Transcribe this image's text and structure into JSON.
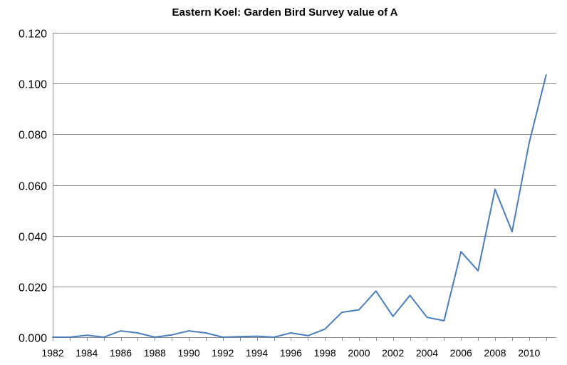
{
  "chart_data": {
    "type": "line",
    "title": "Eastern Koel: Garden Bird Survey value of A",
    "xlabel": "",
    "ylabel": "",
    "xlim": [
      1982,
      2011.6
    ],
    "ylim": [
      0,
      0.12
    ],
    "grid": true,
    "legend": "none",
    "y_ticks": [
      0,
      0.02,
      0.04,
      0.06,
      0.08,
      0.1,
      0.12
    ],
    "y_tick_labels": [
      "0.000",
      "0.020",
      "0.040",
      "0.060",
      "0.080",
      "0.100",
      "0.120"
    ],
    "x_ticks": [
      1982,
      1984,
      1986,
      1988,
      1990,
      1992,
      1994,
      1996,
      1998,
      2000,
      2002,
      2004,
      2006,
      2008,
      2010
    ],
    "x_tick_labels": [
      "1982",
      "1984",
      "1986",
      "1988",
      "1990",
      "1992",
      "1994",
      "1996",
      "1998",
      "2000",
      "2002",
      "2004",
      "2006",
      "2008",
      "2010"
    ],
    "series": [
      {
        "name": "Eastern Koel",
        "color": "#4A7EBB",
        "x": [
          1982,
          1983,
          1984,
          1985,
          1986,
          1987,
          1988,
          1989,
          1990,
          1991,
          1992,
          1993,
          1994,
          1995,
          1996,
          1997,
          1998,
          1999,
          2000,
          2001,
          2002,
          2003,
          2004,
          2005,
          2006,
          2007,
          2008,
          2009,
          2010,
          2011
        ],
        "values": [
          0.0,
          0.0,
          0.0008,
          0.0,
          0.0025,
          0.0017,
          0.0,
          0.0009,
          0.0025,
          0.0017,
          0.0,
          0.0002,
          0.0004,
          0.0,
          0.0017,
          0.0006,
          0.0032,
          0.0098,
          0.0108,
          0.0182,
          0.0082,
          0.0165,
          0.0078,
          0.0065,
          0.0337,
          0.0262,
          0.0583,
          0.0416,
          0.0765,
          0.1034
        ]
      }
    ]
  }
}
